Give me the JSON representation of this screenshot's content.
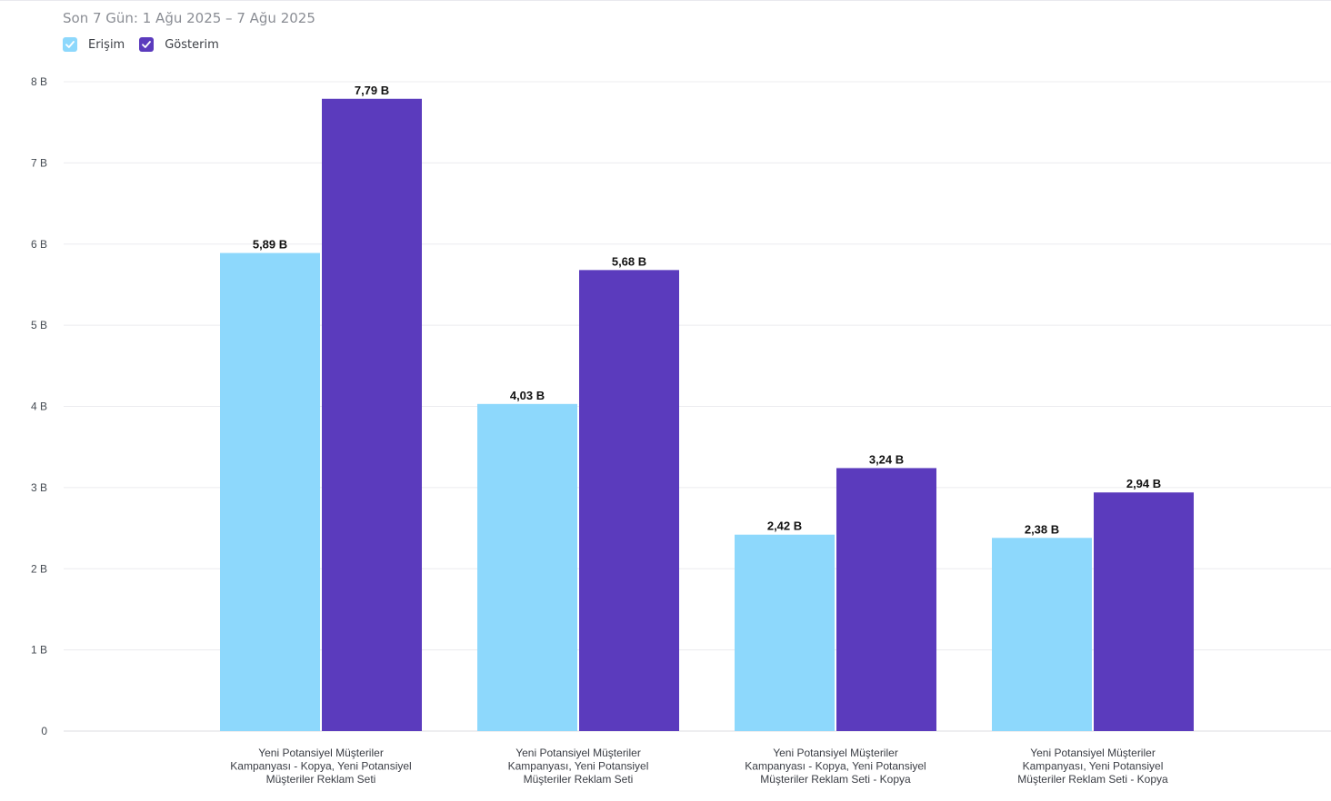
{
  "subtitle": "Son 7 Gün: 1 Ağu 2025 – 7 Ağu 2025",
  "legend": [
    {
      "label": "Erişim",
      "color": "#8dd8fc"
    },
    {
      "label": "Gösterim",
      "color": "#5b3bbd"
    }
  ],
  "chart_data": {
    "type": "bar",
    "categories": [
      [
        "Yeni Potansiyel Müşteriler",
        "Kampanyası - Kopya, Yeni Potansiyel",
        "Müşteriler Reklam Seti"
      ],
      [
        "Yeni Potansiyel Müşteriler",
        "Kampanyası, Yeni Potansiyel",
        "Müşteriler Reklam Seti"
      ],
      [
        "Yeni Potansiyel Müşteriler",
        "Kampanyası - Kopya, Yeni Potansiyel",
        "Müşteriler Reklam Seti - Kopya"
      ],
      [
        "Yeni Potansiyel Müşteriler",
        "Kampanyası, Yeni Potansiyel",
        "Müşteriler Reklam Seti - Kopya"
      ]
    ],
    "series": [
      {
        "name": "Erişim",
        "color": "#8dd8fc",
        "values": [
          5.89,
          4.03,
          2.42,
          2.38
        ],
        "labels": [
          "5,89 B",
          "4,03 B",
          "2,42 B",
          "2,38 B"
        ]
      },
      {
        "name": "Gösterim",
        "color": "#5b3bbd",
        "values": [
          7.79,
          5.68,
          3.24,
          2.94
        ],
        "labels": [
          "7,79 B",
          "5,68 B",
          "3,24 B",
          "2,94 B"
        ]
      }
    ],
    "yticks": [
      0,
      1,
      2,
      3,
      4,
      5,
      6,
      7,
      8
    ],
    "ytick_labels": [
      "0",
      "1 B",
      "2 B",
      "3 B",
      "4 B",
      "5 B",
      "6 B",
      "7 B",
      "8 B"
    ],
    "ylim": [
      0,
      8
    ],
    "grid": true,
    "legend_position": "top-left"
  }
}
